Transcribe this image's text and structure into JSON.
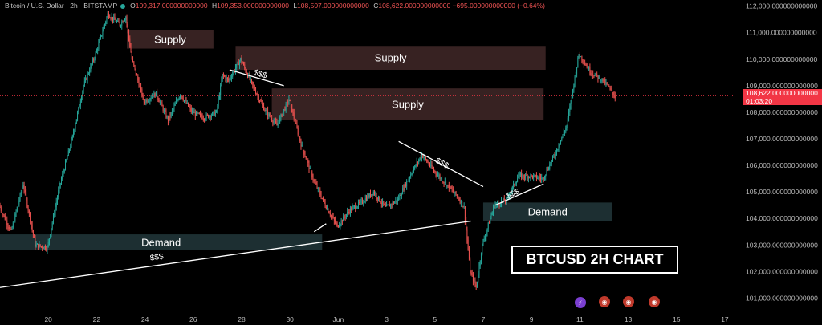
{
  "legend": {
    "symbol": "Bitcoin / U.S. Dollar · 2h · BITSTAMP",
    "open_label": "O",
    "open": "109,317.000000000000",
    "high_label": "H",
    "high": "109,353.000000000000",
    "low_label": "L",
    "low": "108,507.000000000000",
    "close_label": "C",
    "close": "108,622.000000000000",
    "change": "−695.000000000000 (−0.64%)"
  },
  "price_badge": {
    "price": "108,622.000000000000",
    "countdown": "01:03:20"
  },
  "title_box": "BTCUSD 2H CHART",
  "colors": {
    "up": "#26a69a",
    "down": "#ef5350",
    "supply": "#3a2424",
    "demand": "#1f3135",
    "badge": "#f23645"
  },
  "icons": [
    "lightning-icon",
    "flag-icon",
    "flag-icon",
    "flag-icon"
  ],
  "chart_data": {
    "type": "candlestick",
    "y_axis": {
      "ticks": [
        "112,000.000000000000",
        "111,000.000000000000",
        "110,000.000000000000",
        "109,000.000000000000",
        "108,000.000000000000",
        "107,000.000000000000",
        "106,000.000000000000",
        "105,000.000000000000",
        "104,000.000000000000",
        "103,000.000000000000",
        "102,000.000000000000",
        "101,000.000000000000"
      ],
      "tick_values": [
        112000,
        111000,
        110000,
        109000,
        108000,
        107000,
        106000,
        105000,
        104000,
        103000,
        102000,
        101000
      ],
      "range": [
        100500,
        112200
      ]
    },
    "x_axis": {
      "ticks": [
        "20",
        "22",
        "24",
        "26",
        "28",
        "30",
        "Jun",
        "3",
        "5",
        "7",
        "9",
        "11",
        "13",
        "15",
        "17"
      ],
      "tick_dates": [
        "2025-05-20",
        "2025-05-22",
        "2025-05-24",
        "2025-05-26",
        "2025-05-28",
        "2025-05-30",
        "2025-06-01",
        "2025-06-03",
        "2025-06-05",
        "2025-06-07",
        "2025-06-09",
        "2025-06-11",
        "2025-06-13",
        "2025-06-15",
        "2025-06-17"
      ],
      "range": [
        "2025-05-18T00:00",
        "2025-06-17T12:00"
      ]
    },
    "price_line": 108622,
    "anchors": [
      [
        "2025-05-18T00:00",
        104500
      ],
      [
        "2025-05-18T12:00",
        103500
      ],
      [
        "2025-05-19T00:00",
        105300
      ],
      [
        "2025-05-19T12:00",
        103000
      ],
      [
        "2025-05-20T00:00",
        102900
      ],
      [
        "2025-05-20T12:00",
        105200
      ],
      [
        "2025-05-21T00:00",
        106900
      ],
      [
        "2025-05-21T12:00",
        109000
      ],
      [
        "2025-05-22T00:00",
        110200
      ],
      [
        "2025-05-22T12:00",
        111700
      ],
      [
        "2025-05-23T00:00",
        111300
      ],
      [
        "2025-05-23T06:00",
        111600
      ],
      [
        "2025-05-23T12:00",
        110000
      ],
      [
        "2025-05-24T00:00",
        108400
      ],
      [
        "2025-05-24T12:00",
        108700
      ],
      [
        "2025-05-25T00:00",
        107700
      ],
      [
        "2025-05-25T12:00",
        108700
      ],
      [
        "2025-05-26T00:00",
        108000
      ],
      [
        "2025-05-26T12:00",
        107800
      ],
      [
        "2025-05-27T00:00",
        108000
      ],
      [
        "2025-05-27T06:00",
        109400
      ],
      [
        "2025-05-27T12:00",
        109200
      ],
      [
        "2025-05-28T00:00",
        110000
      ],
      [
        "2025-05-28T12:00",
        109000
      ],
      [
        "2025-05-29T00:00",
        108100
      ],
      [
        "2025-05-29T12:00",
        107500
      ],
      [
        "2025-05-30T00:00",
        108500
      ],
      [
        "2025-05-30T12:00",
        106800
      ],
      [
        "2025-05-31T00:00",
        105500
      ],
      [
        "2025-05-31T12:00",
        104500
      ],
      [
        "2025-06-01T00:00",
        103700
      ],
      [
        "2025-06-01T12:00",
        104300
      ],
      [
        "2025-06-02T00:00",
        104600
      ],
      [
        "2025-06-02T12:00",
        105000
      ],
      [
        "2025-06-03T00:00",
        104400
      ],
      [
        "2025-06-03T12:00",
        104700
      ],
      [
        "2025-06-04T00:00",
        105600
      ],
      [
        "2025-06-04T12:00",
        106400
      ],
      [
        "2025-06-05T00:00",
        105800
      ],
      [
        "2025-06-05T12:00",
        105300
      ],
      [
        "2025-06-06T00:00",
        104800
      ],
      [
        "2025-06-06T06:00",
        104400
      ],
      [
        "2025-06-06T12:00",
        102000
      ],
      [
        "2025-06-06T18:00",
        101400
      ],
      [
        "2025-06-07T00:00",
        103000
      ],
      [
        "2025-06-07T12:00",
        104500
      ],
      [
        "2025-06-08T00:00",
        104700
      ],
      [
        "2025-06-08T12:00",
        105600
      ],
      [
        "2025-06-09T00:00",
        105600
      ],
      [
        "2025-06-09T12:00",
        105500
      ],
      [
        "2025-06-10T00:00",
        106400
      ],
      [
        "2025-06-10T12:00",
        107500
      ],
      [
        "2025-06-11T00:00",
        110200
      ],
      [
        "2025-06-11T12:00",
        109500
      ],
      [
        "2025-06-12T00:00",
        109200
      ],
      [
        "2025-06-12T12:00",
        108600
      ]
    ],
    "zones": [
      {
        "type": "supply",
        "label": "Supply",
        "from": "2025-05-23T06:00",
        "to": "2025-05-26T20:00",
        "top": 111100,
        "bottom": 110400
      },
      {
        "type": "supply",
        "label": "Supply",
        "from": "2025-05-27T18:00",
        "to": "2025-06-09T14:00",
        "top": 110500,
        "bottom": 109600
      },
      {
        "type": "supply",
        "label": "Supply",
        "from": "2025-05-29T06:00",
        "to": "2025-06-09T12:00",
        "top": 108900,
        "bottom": 107700
      },
      {
        "type": "demand",
        "label": "Demand",
        "from": "2025-05-18T00:00",
        "to": "2025-05-31T08:00",
        "top": 103400,
        "bottom": 102800
      },
      {
        "type": "demand",
        "label": "Demand",
        "from": "2025-06-07T00:00",
        "to": "2025-06-12T08:00",
        "top": 104600,
        "bottom": 103900
      }
    ],
    "trendlines": [
      {
        "label": "$$$",
        "from": [
          "2025-05-18T00:00",
          101400
        ],
        "to": [
          "2025-06-06T12:00",
          103900
        ],
        "label_at": [
          "2025-05-24T12:00",
          102450
        ]
      },
      {
        "label": "$$$",
        "from": [
          "2025-05-27T12:00",
          109600
        ],
        "to": [
          "2025-05-29T18:00",
          109000
        ],
        "label_at": [
          "2025-05-28T18:00",
          109350
        ]
      },
      {
        "label": "$$$",
        "from": [
          "2025-06-03T12:00",
          106900
        ],
        "to": [
          "2025-06-07T00:00",
          105200
        ],
        "label_at": [
          "2025-06-05T06:00",
          106000
        ]
      },
      {
        "label": "$$$",
        "from": [
          "2025-06-07T12:00",
          104500
        ],
        "to": [
          "2025-06-09T12:00",
          105300
        ],
        "label_at": [
          "2025-06-08T06:00",
          104850
        ]
      },
      {
        "label": "",
        "from": [
          "2025-05-31T00:00",
          103500
        ],
        "to": [
          "2025-05-31T12:00",
          103800
        ],
        "label_at": null
      }
    ]
  }
}
